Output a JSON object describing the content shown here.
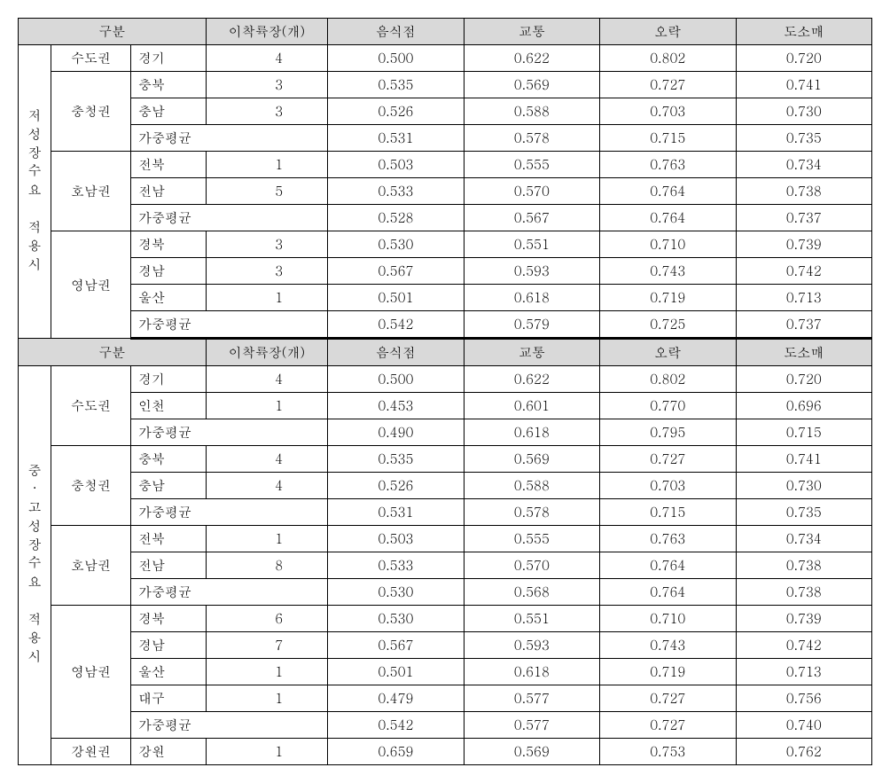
{
  "headers": {
    "category": "구분",
    "count": "이착륙장(개)",
    "food": "음식점",
    "transport": "교통",
    "entertainment": "오락",
    "retail": "도소매"
  },
  "section1": {
    "title": "저성장수요 적용시",
    "groups": [
      {
        "region": "수도권",
        "rows": [
          {
            "sub": "경기",
            "count": "4",
            "food": "0.500",
            "transport": "0.622",
            "entertainment": "0.802",
            "retail": "0.720"
          }
        ]
      },
      {
        "region": "충청권",
        "rows": [
          {
            "sub": "충북",
            "count": "3",
            "food": "0.535",
            "transport": "0.569",
            "entertainment": "0.727",
            "retail": "0.741"
          },
          {
            "sub": "충남",
            "count": "3",
            "food": "0.526",
            "transport": "0.588",
            "entertainment": "0.703",
            "retail": "0.730"
          }
        ],
        "avg": {
          "sub": "가중평균",
          "food": "0.531",
          "transport": "0.578",
          "entertainment": "0.715",
          "retail": "0.735"
        }
      },
      {
        "region": "호남권",
        "rows": [
          {
            "sub": "전북",
            "count": "1",
            "food": "0.503",
            "transport": "0.555",
            "entertainment": "0.763",
            "retail": "0.734"
          },
          {
            "sub": "전남",
            "count": "5",
            "food": "0.533",
            "transport": "0.570",
            "entertainment": "0.764",
            "retail": "0.738"
          }
        ],
        "avg": {
          "sub": "가중평균",
          "food": "0.528",
          "transport": "0.567",
          "entertainment": "0.764",
          "retail": "0.737"
        }
      },
      {
        "region": "영남권",
        "rows": [
          {
            "sub": "경북",
            "count": "3",
            "food": "0.530",
            "transport": "0.551",
            "entertainment": "0.710",
            "retail": "0.739"
          },
          {
            "sub": "경남",
            "count": "3",
            "food": "0.567",
            "transport": "0.593",
            "entertainment": "0.743",
            "retail": "0.742"
          },
          {
            "sub": "울산",
            "count": "1",
            "food": "0.501",
            "transport": "0.618",
            "entertainment": "0.719",
            "retail": "0.713"
          }
        ],
        "avg": {
          "sub": "가중평균",
          "food": "0.542",
          "transport": "0.579",
          "entertainment": "0.725",
          "retail": "0.737"
        }
      }
    ]
  },
  "section2": {
    "title": "중·고성장수요 적용시",
    "groups": [
      {
        "region": "수도권",
        "rows": [
          {
            "sub": "경기",
            "count": "4",
            "food": "0.500",
            "transport": "0.622",
            "entertainment": "0.802",
            "retail": "0.720"
          },
          {
            "sub": "인천",
            "count": "1",
            "food": "0.453",
            "transport": "0.601",
            "entertainment": "0.770",
            "retail": "0.696"
          }
        ],
        "avg": {
          "sub": "가중평균",
          "food": "0.490",
          "transport": "0.618",
          "entertainment": "0.795",
          "retail": "0.715"
        }
      },
      {
        "region": "충청권",
        "rows": [
          {
            "sub": "충북",
            "count": "4",
            "food": "0.535",
            "transport": "0.569",
            "entertainment": "0.727",
            "retail": "0.741"
          },
          {
            "sub": "충남",
            "count": "4",
            "food": "0.526",
            "transport": "0.588",
            "entertainment": "0.703",
            "retail": "0.730"
          }
        ],
        "avg": {
          "sub": "가중평균",
          "food": "0.531",
          "transport": "0.578",
          "entertainment": "0.715",
          "retail": "0.735"
        }
      },
      {
        "region": "호남권",
        "rows": [
          {
            "sub": "전북",
            "count": "1",
            "food": "0.503",
            "transport": "0.555",
            "entertainment": "0.763",
            "retail": "0.734"
          },
          {
            "sub": "전남",
            "count": "8",
            "food": "0.533",
            "transport": "0.570",
            "entertainment": "0.764",
            "retail": "0.738"
          }
        ],
        "avg": {
          "sub": "가중평균",
          "food": "0.530",
          "transport": "0.568",
          "entertainment": "0.764",
          "retail": "0.738"
        }
      },
      {
        "region": "영남권",
        "rows": [
          {
            "sub": "경북",
            "count": "6",
            "food": "0.530",
            "transport": "0.551",
            "entertainment": "0.710",
            "retail": "0.739"
          },
          {
            "sub": "경남",
            "count": "7",
            "food": "0.567",
            "transport": "0.593",
            "entertainment": "0.743",
            "retail": "0.742"
          },
          {
            "sub": "울산",
            "count": "1",
            "food": "0.501",
            "transport": "0.618",
            "entertainment": "0.719",
            "retail": "0.713"
          },
          {
            "sub": "대구",
            "count": "1",
            "food": "0.479",
            "transport": "0.577",
            "entertainment": "0.727",
            "retail": "0.756"
          }
        ],
        "avg": {
          "sub": "가중평균",
          "food": "0.542",
          "transport": "0.577",
          "entertainment": "0.727",
          "retail": "0.740"
        }
      },
      {
        "region": "강원권",
        "rows": [
          {
            "sub": "강원",
            "count": "1",
            "food": "0.659",
            "transport": "0.569",
            "entertainment": "0.753",
            "retail": "0.762"
          }
        ]
      }
    ]
  }
}
